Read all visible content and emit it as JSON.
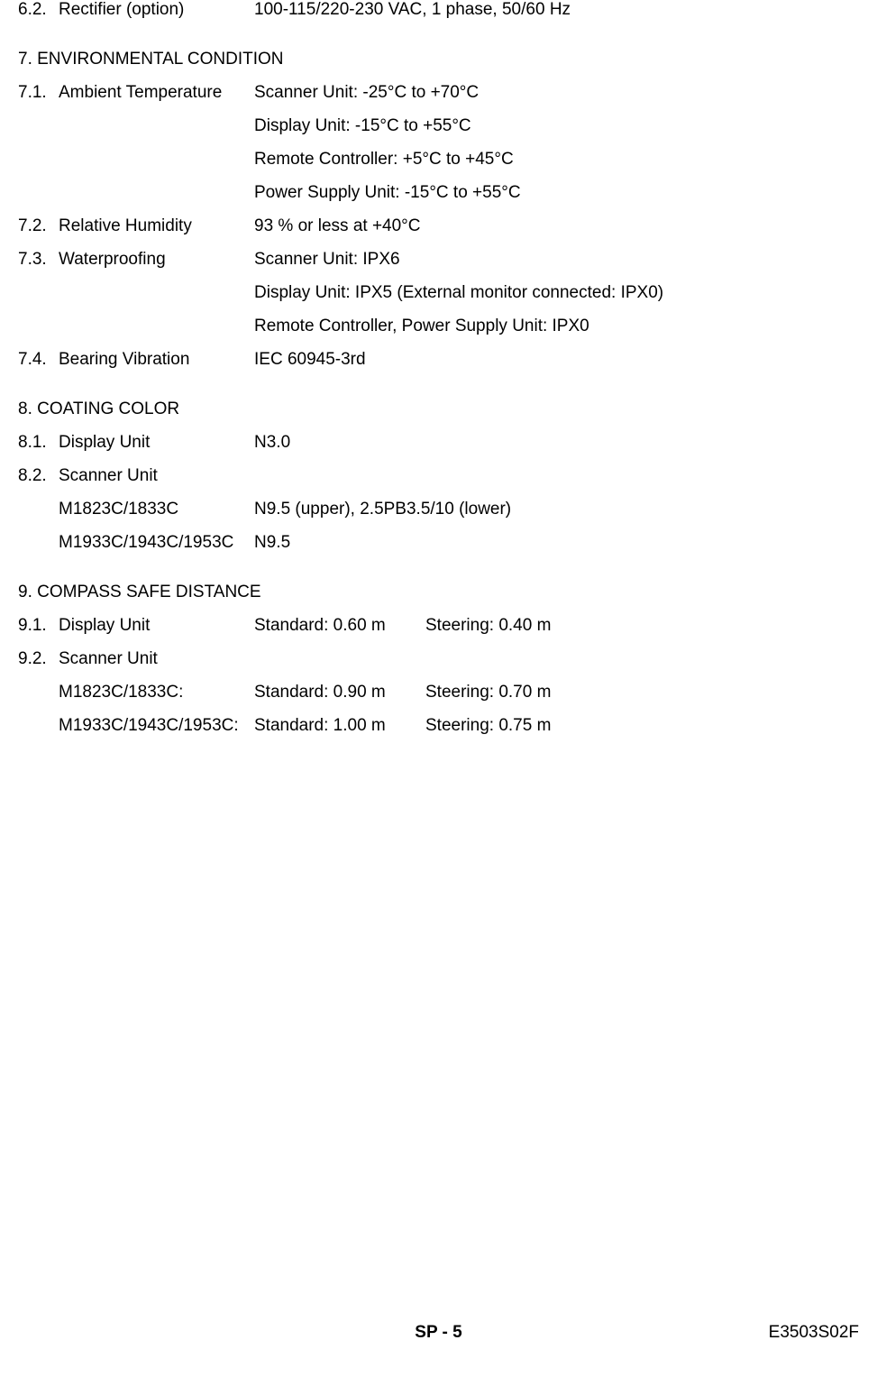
{
  "s6": {
    "i2": {
      "num": "6.2.",
      "label": "Rectifier (option)",
      "value": "100-115/220-230 VAC, 1 phase, 50/60 Hz"
    }
  },
  "s7": {
    "heading": "7. ENVIRONMENTAL CONDITION",
    "i1": {
      "num": "7.1.",
      "label": "Ambient Temperature",
      "lines": [
        "Scanner Unit: -25°C to +70°C",
        "Display Unit: -15°C to +55°C",
        "Remote Controller: +5°C to +45°C",
        "Power Supply Unit: -15°C to +55°C"
      ]
    },
    "i2": {
      "num": "7.2.",
      "label": "Relative Humidity",
      "value": "93 % or less at +40°C"
    },
    "i3": {
      "num": "7.3.",
      "label": "Waterproofing",
      "lines": [
        "Scanner Unit: IPX6",
        "Display Unit: IPX5 (External monitor connected: IPX0)",
        "Remote Controller, Power Supply Unit: IPX0"
      ]
    },
    "i4": {
      "num": "7.4.",
      "label": "Bearing Vibration",
      "value": "IEC 60945-3rd"
    }
  },
  "s8": {
    "heading": "8. COATING COLOR",
    "i1": {
      "num": "8.1.",
      "label": "Display Unit",
      "value": "N3.0"
    },
    "i2": {
      "num": "8.2.",
      "label": "Scanner Unit"
    },
    "sub1": {
      "label": "M1823C/1833C",
      "value": "N9.5 (upper), 2.5PB3.5/10 (lower)"
    },
    "sub2": {
      "label": "M1933C/1943C/1953C",
      "value": "N9.5"
    }
  },
  "s9": {
    "heading": "9. COMPASS SAFE DISTANCE",
    "i1": {
      "num": "9.1.",
      "label": "Display Unit",
      "col1": "Standard: 0.60 m",
      "col2": "Steering: 0.40 m"
    },
    "i2": {
      "num": "9.2.",
      "label": "Scanner Unit"
    },
    "sub1": {
      "label": "M1823C/1833C:",
      "col1": "Standard: 0.90 m",
      "col2": "Steering: 0.70 m"
    },
    "sub2": {
      "label": "M1933C/1943C/1953C:",
      "col1": "Standard: 1.00 m",
      "col2": "Steering: 0.75 m"
    }
  },
  "footer": {
    "center": "SP - 5",
    "right": "E3503S02F"
  }
}
